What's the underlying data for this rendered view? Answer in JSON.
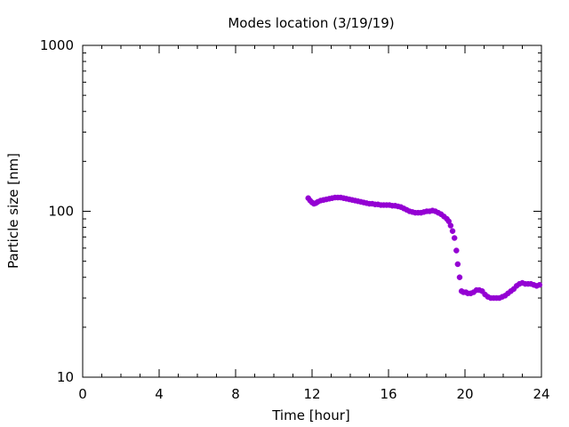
{
  "chart_data": {
    "type": "scatter",
    "title": "Modes location (3/19/19)",
    "xlabel": "Time [hour]",
    "ylabel": "Particle size [nm]",
    "xlim": [
      0,
      24
    ],
    "ylim": [
      10,
      1000
    ],
    "yscale": "log",
    "x_ticks": [
      0,
      4,
      8,
      12,
      16,
      20,
      24
    ],
    "x_tick_labels": [
      "0",
      "4",
      "8",
      "12",
      "16",
      "20",
      "24"
    ],
    "y_ticks": [
      10,
      100,
      1000
    ],
    "y_tick_labels": [
      "10",
      "100",
      "1000"
    ],
    "grid": false,
    "legend": "none",
    "colors": {
      "points": "#9400d3"
    },
    "series": [
      {
        "points": [
          [
            11.8,
            120
          ],
          [
            11.9,
            116
          ],
          [
            12.0,
            113
          ],
          [
            12.1,
            111
          ],
          [
            12.2,
            112
          ],
          [
            12.3,
            114
          ],
          [
            12.45,
            116
          ],
          [
            12.6,
            117
          ],
          [
            12.75,
            118
          ],
          [
            12.9,
            119
          ],
          [
            13.05,
            120
          ],
          [
            13.2,
            121
          ],
          [
            13.35,
            121
          ],
          [
            13.5,
            121
          ],
          [
            13.65,
            120
          ],
          [
            13.8,
            119
          ],
          [
            13.95,
            118
          ],
          [
            14.1,
            117
          ],
          [
            14.25,
            116
          ],
          [
            14.4,
            115
          ],
          [
            14.55,
            114
          ],
          [
            14.7,
            113
          ],
          [
            14.85,
            112
          ],
          [
            15.0,
            111
          ],
          [
            15.15,
            111
          ],
          [
            15.3,
            110
          ],
          [
            15.45,
            110
          ],
          [
            15.6,
            109
          ],
          [
            15.75,
            109
          ],
          [
            15.9,
            109
          ],
          [
            16.05,
            109
          ],
          [
            16.2,
            108
          ],
          [
            16.35,
            108
          ],
          [
            16.5,
            107
          ],
          [
            16.65,
            106
          ],
          [
            16.8,
            104
          ],
          [
            16.95,
            102
          ],
          [
            17.1,
            100
          ],
          [
            17.25,
            99
          ],
          [
            17.4,
            98
          ],
          [
            17.55,
            98
          ],
          [
            17.7,
            98
          ],
          [
            17.85,
            99
          ],
          [
            18.0,
            100
          ],
          [
            18.15,
            100
          ],
          [
            18.3,
            101
          ],
          [
            18.45,
            100
          ],
          [
            18.6,
            98
          ],
          [
            18.75,
            96
          ],
          [
            18.9,
            93
          ],
          [
            19.05,
            90
          ],
          [
            19.15,
            87
          ],
          [
            19.25,
            82
          ],
          [
            19.35,
            76
          ],
          [
            19.45,
            69
          ],
          [
            19.55,
            58
          ],
          [
            19.62,
            48
          ],
          [
            19.72,
            40
          ],
          [
            19.82,
            33
          ],
          [
            19.92,
            32.5
          ],
          [
            20.05,
            32.5
          ],
          [
            20.15,
            32
          ],
          [
            20.3,
            32
          ],
          [
            20.45,
            32.5
          ],
          [
            20.6,
            33.5
          ],
          [
            20.75,
            33.5
          ],
          [
            20.9,
            33
          ],
          [
            21.05,
            31.5
          ],
          [
            21.2,
            30.5
          ],
          [
            21.35,
            30
          ],
          [
            21.5,
            30
          ],
          [
            21.65,
            30
          ],
          [
            21.8,
            30
          ],
          [
            21.95,
            30.5
          ],
          [
            22.1,
            31
          ],
          [
            22.25,
            32
          ],
          [
            22.4,
            33
          ],
          [
            22.55,
            34
          ],
          [
            22.7,
            35.5
          ],
          [
            22.85,
            36.5
          ],
          [
            23.0,
            37
          ],
          [
            23.15,
            36.5
          ],
          [
            23.3,
            36.5
          ],
          [
            23.45,
            36.5
          ],
          [
            23.6,
            36
          ],
          [
            23.75,
            35.5
          ],
          [
            23.9,
            36
          ]
        ]
      }
    ]
  }
}
